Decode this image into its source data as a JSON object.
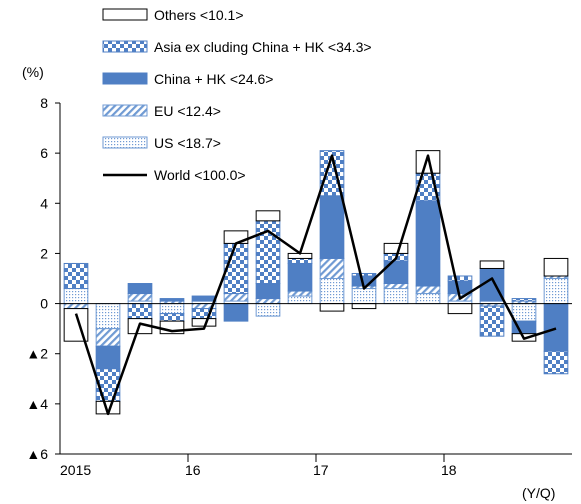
{
  "chart_data": {
    "type": "bar",
    "stacked": true,
    "y_unit_label": "(%)",
    "x_unit_label": "(Y/Q)",
    "ylim": [
      -6,
      8
    ],
    "y_ticks": [
      {
        "value": 8,
        "label": "8"
      },
      {
        "value": 6,
        "label": "6"
      },
      {
        "value": 4,
        "label": "4"
      },
      {
        "value": 2,
        "label": "2"
      },
      {
        "value": 0,
        "label": "0"
      },
      {
        "value": -2,
        "label": "▲2"
      },
      {
        "value": -4,
        "label": "▲4"
      },
      {
        "value": -6,
        "label": "▲6"
      }
    ],
    "categories": [
      "2015 Q1",
      "2015 Q2",
      "2015 Q3",
      "2015 Q4",
      "2016 Q1",
      "2016 Q2",
      "2016 Q3",
      "2016 Q4",
      "2017 Q1",
      "2017 Q2",
      "2017 Q3",
      "2017 Q4",
      "2018 Q1",
      "2018 Q2",
      "2018 Q3",
      "2018 Q4"
    ],
    "x_year_labels": [
      {
        "label": "2015",
        "after_index": -1
      },
      {
        "label": "16",
        "after_index": 3
      },
      {
        "label": "17",
        "after_index": 7
      },
      {
        "label": "18",
        "after_index": 11
      }
    ],
    "legend": [
      {
        "key": "others",
        "label": "Others <10.1>"
      },
      {
        "key": "asia",
        "label": "Asia ex cluding China + HK <34.3>"
      },
      {
        "key": "china",
        "label": "China + HK <24.6>"
      },
      {
        "key": "eu",
        "label": "EU <12.4>"
      },
      {
        "key": "us",
        "label": "US <18.7>"
      },
      {
        "key": "world",
        "label": "World <100.0>"
      }
    ],
    "series": [
      {
        "key": "us",
        "name": "US <18.7>",
        "values": [
          0.6,
          -1.0,
          0.1,
          -0.4,
          0.1,
          0.1,
          -0.5,
          0.3,
          1.0,
          0.6,
          0.6,
          0.4,
          0.1,
          0.1,
          -0.7,
          1.0
        ]
      },
      {
        "key": "eu",
        "name": "EU <12.4>",
        "values": [
          -0.2,
          -0.7,
          0.3,
          0.1,
          -0.2,
          0.3,
          0.2,
          0.2,
          0.8,
          0.1,
          0.2,
          0.3,
          0.3,
          -0.1,
          0.1,
          0.1
        ]
      },
      {
        "key": "china",
        "name": "China + HK <24.6>",
        "values": [
          0.0,
          -0.9,
          0.4,
          0.1,
          0.2,
          -0.7,
          0.6,
          1.1,
          2.5,
          0.4,
          0.9,
          3.4,
          0.5,
          1.3,
          -0.5,
          -1.9
        ]
      },
      {
        "key": "asia",
        "name": "Asia ex cluding China + HK <34.3>",
        "values": [
          1.0,
          -1.3,
          -0.6,
          -0.3,
          -0.4,
          2.0,
          2.5,
          0.2,
          1.8,
          0.1,
          0.3,
          1.1,
          0.2,
          -1.2,
          0.1,
          -0.9
        ]
      },
      {
        "key": "others",
        "name": "Others <10.1>",
        "values": [
          -1.3,
          -0.5,
          -0.6,
          -0.5,
          -0.3,
          0.5,
          0.4,
          0.2,
          -0.3,
          -0.2,
          0.4,
          0.9,
          -0.4,
          0.3,
          -0.3,
          0.7
        ]
      }
    ],
    "line": {
      "key": "world",
      "name": "World <100.0>",
      "values": [
        -0.4,
        -4.4,
        -0.8,
        -1.1,
        -1.0,
        2.4,
        2.9,
        2.0,
        5.9,
        0.6,
        1.8,
        5.9,
        0.2,
        1.0,
        -1.4,
        -1.0
      ]
    }
  }
}
